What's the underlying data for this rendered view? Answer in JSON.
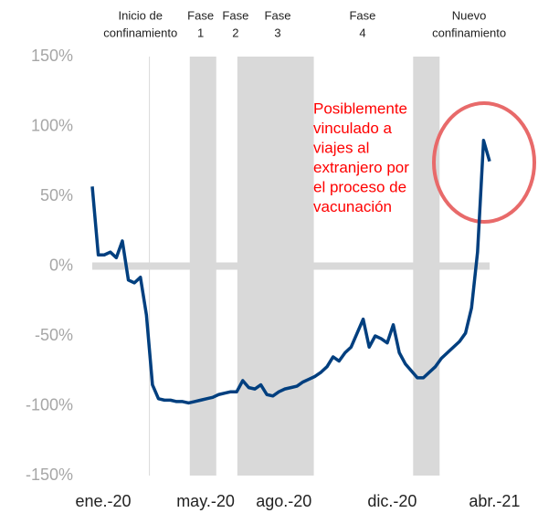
{
  "chart_data": {
    "type": "line",
    "values": [
      57,
      8,
      8,
      10,
      6,
      18,
      -10,
      -12,
      -8,
      -35,
      -85,
      -95,
      -96,
      -96,
      -97,
      -97,
      -98,
      -97,
      -96,
      -95,
      -94,
      -92,
      -91,
      -90,
      -90,
      -82,
      -87,
      -88,
      -85,
      -92,
      -93,
      -90,
      -88,
      -87,
      -86,
      -83,
      -81,
      -79,
      -76,
      -72,
      -65,
      -68,
      -62,
      -58,
      -48,
      -38,
      -58,
      -50,
      -52,
      -55,
      -42,
      -62,
      -70,
      -75,
      -80,
      -80,
      -76,
      -72,
      -66,
      -62,
      -58,
      -54,
      -48,
      -30,
      10,
      90,
      75
    ],
    "color": "#003f7f",
    "xlim": [
      0,
      66
    ],
    "xticks": [
      {
        "value": 0,
        "label": "ene.-20"
      },
      {
        "value": 17,
        "label": "may.-20"
      },
      {
        "value": 30,
        "label": "ago.-20"
      },
      {
        "value": 48,
        "label": "dic.-20"
      },
      {
        "value": 65,
        "label": "abr.-21"
      }
    ],
    "ylim": [
      -150,
      150
    ],
    "yticks": [
      {
        "value": 150,
        "label": "150%"
      },
      {
        "value": 100,
        "label": "100%"
      },
      {
        "value": 50,
        "label": "50%"
      },
      {
        "value": 0,
        "label": "0%"
      },
      {
        "value": -50,
        "label": "-50%"
      },
      {
        "value": -100,
        "label": "-100%"
      },
      {
        "value": -150,
        "label": "-150%"
      }
    ],
    "shaded_ranges": [
      [
        16.2,
        20.6
      ],
      [
        24.1,
        36.8
      ],
      [
        53.3,
        57.7
      ]
    ],
    "vertical_line": 9.5,
    "header_labels": [
      {
        "lines": [
          "Inicio de",
          "confinamiento"
        ],
        "x": 8
      },
      {
        "lines": [
          "Fase",
          "1"
        ],
        "x": 18
      },
      {
        "lines": [
          "Fase",
          "2"
        ],
        "x": 23.8
      },
      {
        "lines": [
          "Fase",
          "3"
        ],
        "x": 30.8
      },
      {
        "lines": [
          "Fase",
          "4"
        ],
        "x": 44.9
      },
      {
        "lines": [
          "Nuevo",
          "confinamiento"
        ],
        "x": 62.6
      }
    ],
    "annotation": [
      "Posiblemente",
      "vinculado a",
      "viajes al",
      "extranjero por",
      "el proceso de",
      "vacunación"
    ]
  }
}
